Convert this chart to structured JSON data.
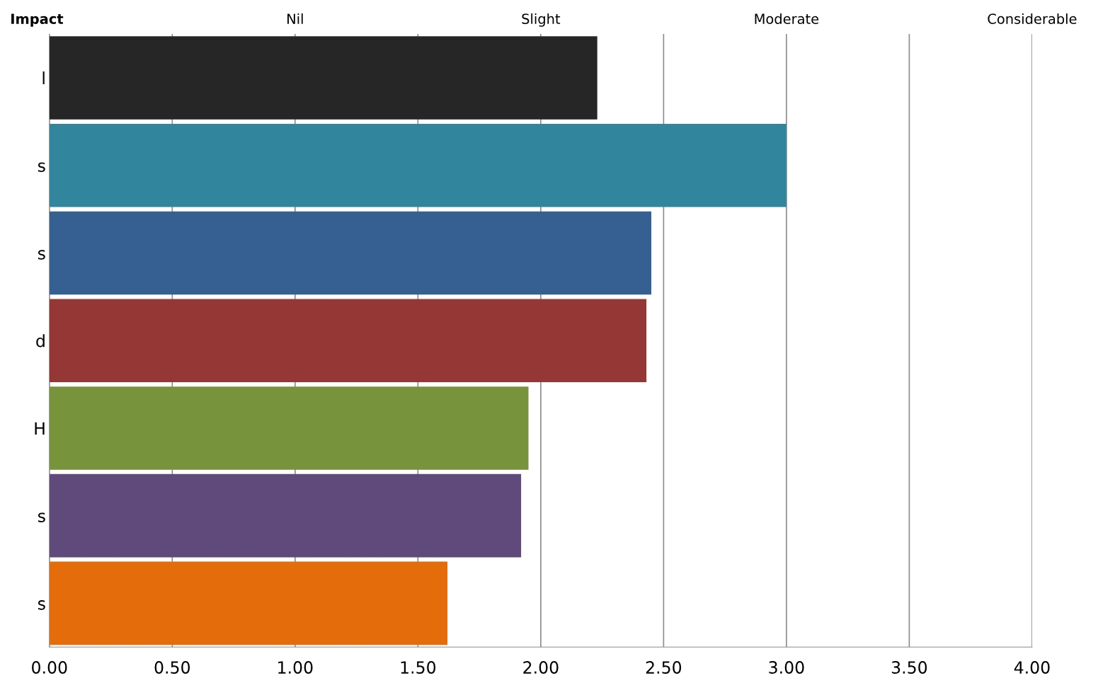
{
  "chart_data": {
    "type": "bar",
    "orientation": "horizontal",
    "categories": [
      "l",
      "s",
      "s",
      "d",
      "H",
      "s",
      "s"
    ],
    "values": [
      2.23,
      3.0,
      2.45,
      2.43,
      1.95,
      1.92,
      1.62
    ],
    "colors": [
      "#262626",
      "#31859c",
      "#366092",
      "#953735",
      "#77933c",
      "#604a7b",
      "#e46c0a"
    ],
    "xlim": [
      0,
      4
    ],
    "xticks": [
      {
        "value": 0,
        "label": "0.00"
      },
      {
        "value": 0.5,
        "label": "0.50"
      },
      {
        "value": 1,
        "label": "1.00"
      },
      {
        "value": 1.5,
        "label": "1.50"
      },
      {
        "value": 2,
        "label": "2.00"
      },
      {
        "value": 2.5,
        "label": "2.50"
      },
      {
        "value": 3,
        "label": "3.00"
      },
      {
        "value": 3.5,
        "label": "3.50"
      },
      {
        "value": 4,
        "label": "4.00"
      }
    ],
    "annotations": [
      "Impact",
      "Nil",
      "Slight",
      "Moderate",
      "Considerable"
    ],
    "grid": "x",
    "legend": false
  }
}
